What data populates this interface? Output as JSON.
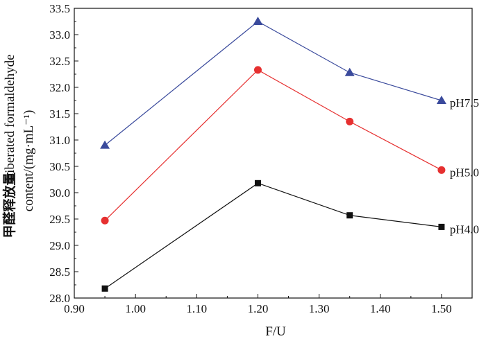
{
  "chart_data": {
    "type": "line",
    "title": "",
    "xlabel": "F/U",
    "ylabel_zh": "甲醛释放量",
    "ylabel_en_line1": "Liberated formaldehyde",
    "ylabel_en_line2": "content/(mg·mL⁻¹)",
    "x": [
      0.95,
      1.2,
      1.35,
      1.5
    ],
    "xlim": [
      0.9,
      1.55
    ],
    "ylim": [
      28.0,
      33.5
    ],
    "xticks": [
      "0.90",
      "1.00",
      "1.10",
      "1.20",
      "1.30",
      "1.40",
      "1.50"
    ],
    "yticks": [
      "28.0",
      "28.5",
      "29.0",
      "29.5",
      "30.0",
      "30.5",
      "31.0",
      "31.5",
      "32.0",
      "32.5",
      "33.0",
      "33.5"
    ],
    "series": [
      {
        "name": "pH7.5",
        "marker": "triangle",
        "color": "#3a4a9c",
        "values": [
          30.9,
          33.25,
          32.28,
          31.75
        ]
      },
      {
        "name": "pH5.0",
        "marker": "circle",
        "color": "#e63030",
        "values": [
          29.47,
          32.33,
          31.35,
          30.43
        ]
      },
      {
        "name": "pH4.0",
        "marker": "square",
        "color": "#111111",
        "values": [
          28.18,
          30.18,
          29.57,
          29.35
        ]
      }
    ]
  }
}
